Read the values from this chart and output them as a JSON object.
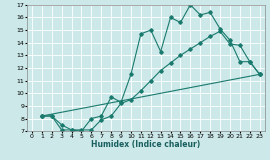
{
  "xlabel": "Humidex (Indice chaleur)",
  "bg_color": "#cce8e8",
  "line_color": "#1a7a6e",
  "xlim": [
    -0.5,
    23.5
  ],
  "ylim": [
    7,
    17
  ],
  "xticks": [
    0,
    1,
    2,
    3,
    4,
    5,
    6,
    7,
    8,
    9,
    10,
    11,
    12,
    13,
    14,
    15,
    16,
    17,
    18,
    19,
    20,
    21,
    22,
    23
  ],
  "yticks": [
    7,
    8,
    9,
    10,
    11,
    12,
    13,
    14,
    15,
    16,
    17
  ],
  "line1_x": [
    1,
    2,
    3,
    4,
    5,
    6,
    7,
    8,
    9,
    10,
    11,
    12,
    13,
    14,
    15,
    16,
    17,
    18,
    19,
    20,
    21,
    22,
    23
  ],
  "line1_y": [
    8.2,
    8.2,
    7.1,
    7.1,
    7.0,
    8.0,
    8.2,
    9.7,
    9.3,
    11.5,
    14.7,
    15.0,
    13.3,
    16.0,
    15.6,
    17.0,
    16.2,
    16.4,
    15.1,
    14.2,
    12.5,
    12.5,
    11.5
  ],
  "line2_x": [
    1,
    2,
    3,
    4,
    5,
    6,
    7,
    8,
    9,
    10,
    11,
    12,
    13,
    14,
    15,
    16,
    17,
    18,
    19,
    20,
    21,
    22,
    23
  ],
  "line2_y": [
    8.2,
    8.2,
    7.5,
    7.1,
    7.1,
    7.1,
    7.9,
    8.2,
    9.2,
    9.5,
    10.2,
    11.0,
    11.8,
    12.4,
    13.0,
    13.5,
    14.0,
    14.5,
    14.9,
    13.9,
    13.8,
    12.5,
    11.5
  ],
  "line3_x": [
    1,
    23
  ],
  "line3_y": [
    8.2,
    11.5
  ]
}
